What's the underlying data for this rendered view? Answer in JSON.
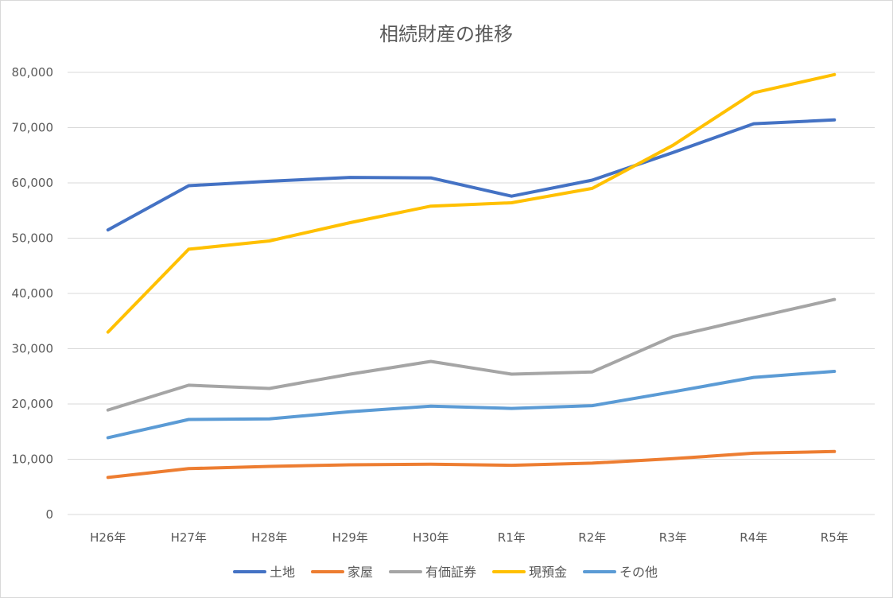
{
  "chart_data": {
    "type": "line",
    "title": "相続財産の推移",
    "xlabel": "",
    "ylabel": "",
    "categories": [
      "H26年",
      "H27年",
      "H28年",
      "H29年",
      "H30年",
      "R1年",
      "R2年",
      "R3年",
      "R4年",
      "R5年"
    ],
    "y_ticks": [
      "0",
      "10,000",
      "20,000",
      "30,000",
      "40,000",
      "50,000",
      "60,000",
      "70,000",
      "80,000"
    ],
    "ylim": [
      0,
      80000
    ],
    "grid": true,
    "legend_position": "bottom",
    "series": [
      {
        "name": "土地",
        "color": "#4472C4",
        "values": [
          51500,
          59500,
          60300,
          61000,
          60900,
          57600,
          60500,
          65500,
          70700,
          71400
        ]
      },
      {
        "name": "家屋",
        "color": "#ED7D31",
        "values": [
          6700,
          8300,
          8700,
          9000,
          9100,
          8900,
          9300,
          10100,
          11100,
          11400
        ]
      },
      {
        "name": "有価証券",
        "color": "#A5A5A5",
        "values": [
          18900,
          23400,
          22800,
          25400,
          27700,
          25400,
          25800,
          32200,
          35600,
          38900
        ]
      },
      {
        "name": "現預金",
        "color": "#FFC000",
        "values": [
          33000,
          48000,
          49500,
          52800,
          55800,
          56400,
          59000,
          66800,
          76300,
          79600
        ]
      },
      {
        "name": "その他",
        "color": "#5B9BD5",
        "values": [
          13900,
          17200,
          17300,
          18600,
          19600,
          19200,
          19700,
          22200,
          24800,
          25900
        ]
      }
    ]
  }
}
